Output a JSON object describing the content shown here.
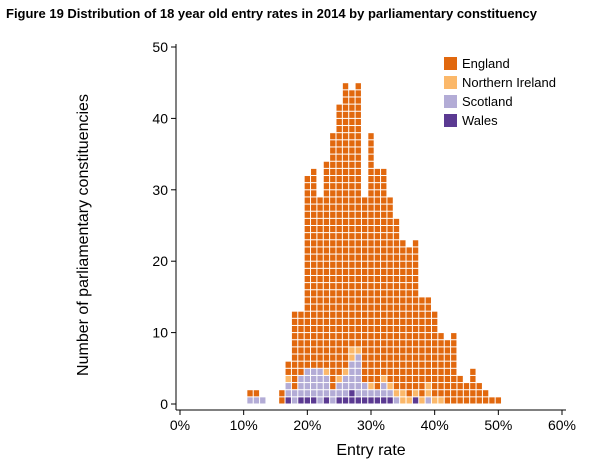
{
  "figure": {
    "title": "Figure 19 Distribution of 18 year old entry rates in 2014 by parliamentary constituency"
  },
  "chart_data": {
    "type": "bar",
    "subtype": "stacked-dot-histogram",
    "title": "Figure 19 Distribution of 18 year old entry rates in 2014 by parliamentary constituency",
    "xlabel": "Entry rate",
    "ylabel": "Number of parliamentary constituencies",
    "xlim": [
      0,
      0.6
    ],
    "ylim": [
      0,
      50
    ],
    "xticks": [
      0,
      0.1,
      0.2,
      0.3,
      0.4,
      0.5,
      0.6
    ],
    "xtick_labels": [
      "0%",
      "10%",
      "20%",
      "30%",
      "40%",
      "50%",
      "60%"
    ],
    "yticks": [
      0,
      10,
      20,
      30,
      40,
      50
    ],
    "ytick_labels": [
      "0",
      "10",
      "20",
      "30",
      "40",
      "50"
    ],
    "bin_width": 0.01,
    "grid": false,
    "legend_position": "top-right",
    "x": [
      0.11,
      0.12,
      0.13,
      0.16,
      0.17,
      0.18,
      0.19,
      0.2,
      0.21,
      0.22,
      0.23,
      0.24,
      0.25,
      0.26,
      0.27,
      0.28,
      0.29,
      0.3,
      0.31,
      0.32,
      0.33,
      0.34,
      0.35,
      0.36,
      0.37,
      0.38,
      0.39,
      0.4,
      0.41,
      0.42,
      0.43,
      0.44,
      0.45,
      0.46,
      0.47,
      0.48,
      0.49,
      0.5
    ],
    "series": [
      {
        "name": "Wales",
        "color": "#5b3a92",
        "values": [
          0,
          0,
          0,
          0,
          1,
          0,
          1,
          1,
          1,
          0,
          1,
          0,
          1,
          1,
          2,
          1,
          1,
          1,
          1,
          1,
          1,
          0,
          0,
          0,
          1,
          0,
          0,
          0,
          0,
          0,
          0,
          0,
          0,
          0,
          0,
          0,
          0,
          0
        ]
      },
      {
        "name": "Scotland",
        "color": "#b3acd6",
        "values": [
          1,
          1,
          1,
          0,
          2,
          2,
          3,
          4,
          4,
          5,
          3,
          2,
          2,
          3,
          4,
          6,
          2,
          1,
          1,
          2,
          1,
          1,
          0,
          0,
          0,
          0,
          1,
          0,
          0,
          0,
          0,
          0,
          0,
          0,
          0,
          0,
          0,
          0
        ]
      },
      {
        "name": "Northern Ireland",
        "color": "#fbb86a",
        "values": [
          0,
          0,
          0,
          0,
          1,
          0,
          0,
          0,
          0,
          0,
          1,
          0,
          1,
          1,
          2,
          1,
          0,
          1,
          0,
          1,
          1,
          1,
          2,
          1,
          1,
          1,
          2,
          1,
          1,
          0,
          0,
          0,
          0,
          0,
          0,
          0,
          0,
          0
        ]
      },
      {
        "name": "England",
        "color": "#e1680e",
        "values": [
          1,
          1,
          0,
          2,
          2,
          11,
          9,
          27,
          28,
          24,
          29,
          36,
          38,
          40,
          36,
          37,
          26,
          35,
          31,
          29,
          26,
          24,
          21,
          21,
          21,
          14,
          12,
          12,
          9,
          9,
          10,
          4,
          3,
          5,
          3,
          2,
          1,
          1
        ]
      }
    ]
  }
}
